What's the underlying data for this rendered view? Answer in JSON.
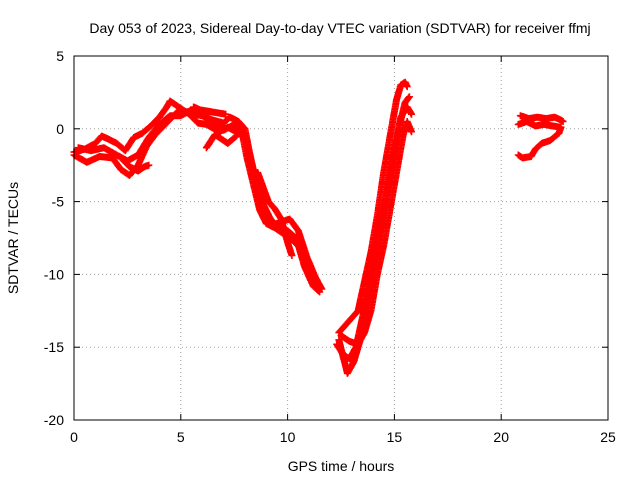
{
  "chart_data": {
    "type": "scatter",
    "title": "Day 053 of 2023, Sidereal Day-to-day VTEC variation (SDTVAR) for receiver ffmj",
    "xlabel": "GPS time / hours",
    "ylabel": "SDTVAR / TECUs",
    "xlim": [
      0,
      25
    ],
    "ylim": [
      -20,
      5
    ],
    "xticks": [
      "0",
      "5",
      "10",
      "15",
      "20",
      "25"
    ],
    "yticks": [
      "5",
      "0",
      "-5",
      "-10",
      "-15",
      "-20"
    ],
    "grid": true,
    "marker": "+",
    "color": "#ff0000",
    "series": [
      {
        "name": "",
        "tracks": [
          [
            [
              0.0,
              -1.6
            ],
            [
              0.5,
              -1.4
            ],
            [
              1.0,
              -1.0
            ],
            [
              1.3,
              -0.5
            ],
            [
              1.6,
              -0.7
            ],
            [
              2.0,
              -1.0
            ],
            [
              2.4,
              -1.5
            ],
            [
              2.8,
              -0.6
            ],
            [
              3.2,
              -0.3
            ],
            [
              3.6,
              0.2
            ],
            [
              4.0,
              0.8
            ],
            [
              4.3,
              1.4
            ],
            [
              4.5,
              1.9
            ],
            [
              4.8,
              1.6
            ],
            [
              5.2,
              1.2
            ],
            [
              5.6,
              1.0
            ],
            [
              6.0,
              0.9
            ],
            [
              6.5,
              0.6
            ],
            [
              7.0,
              0.4
            ],
            [
              7.3,
              0.8
            ],
            [
              7.7,
              0.5
            ],
            [
              8.0,
              0.0
            ],
            [
              8.2,
              -1.5
            ],
            [
              8.5,
              -3.5
            ],
            [
              8.8,
              -5.0
            ],
            [
              9.2,
              -6.2
            ],
            [
              9.6,
              -6.8
            ],
            [
              10.0,
              -7.0
            ],
            [
              10.4,
              -7.5
            ],
            [
              10.8,
              -9.5
            ],
            [
              11.2,
              -10.8
            ],
            [
              11.5,
              -11.2
            ]
          ],
          [
            [
              0.0,
              -1.8
            ],
            [
              0.6,
              -2.3
            ],
            [
              1.2,
              -1.9
            ],
            [
              1.8,
              -2.0
            ],
            [
              2.2,
              -2.8
            ],
            [
              2.6,
              -3.2
            ],
            [
              3.0,
              -2.5
            ],
            [
              3.4,
              -1.2
            ],
            [
              3.8,
              -0.4
            ],
            [
              4.2,
              0.2
            ],
            [
              4.6,
              0.8
            ],
            [
              5.0,
              1.4
            ],
            [
              5.4,
              1.0
            ],
            [
              5.8,
              0.4
            ],
            [
              6.2,
              0.3
            ],
            [
              6.8,
              -0.2
            ],
            [
              7.2,
              0.1
            ],
            [
              7.6,
              -0.2
            ],
            [
              7.9,
              -0.5
            ],
            [
              8.1,
              -2.0
            ],
            [
              8.4,
              -3.8
            ],
            [
              8.7,
              -5.6
            ],
            [
              9.0,
              -6.5
            ],
            [
              9.4,
              -6.8
            ],
            [
              9.8,
              -7.2
            ],
            [
              10.2,
              -7.6
            ],
            [
              10.6,
              -8.2
            ],
            [
              11.0,
              -9.8
            ],
            [
              11.4,
              -11.0
            ]
          ],
          [
            [
              0.2,
              -1.3
            ],
            [
              0.8,
              -1.5
            ],
            [
              1.4,
              -1.3
            ],
            [
              2.0,
              -1.8
            ],
            [
              2.5,
              -2.2
            ],
            [
              3.0,
              -1.8
            ],
            [
              3.5,
              -0.6
            ],
            [
              4.0,
              0.3
            ],
            [
              4.5,
              0.9
            ],
            [
              5.0,
              0.9
            ],
            [
              5.5,
              1.3
            ],
            [
              6.0,
              1.0
            ],
            [
              6.5,
              0.2
            ],
            [
              7.0,
              -0.1
            ],
            [
              7.5,
              0.3
            ],
            [
              8.0,
              -0.4
            ],
            [
              8.3,
              -2.5
            ],
            [
              8.6,
              -4.5
            ],
            [
              8.9,
              -6.0
            ],
            [
              9.3,
              -6.6
            ],
            [
              9.7,
              -6.4
            ],
            [
              10.1,
              -6.2
            ],
            [
              10.5,
              -7.0
            ],
            [
              10.9,
              -8.8
            ],
            [
              11.3,
              -10.2
            ],
            [
              11.6,
              -11.0
            ]
          ],
          [
            [
              2.2,
              -2.0
            ],
            [
              2.6,
              -2.6
            ],
            [
              3.0,
              -2.9
            ],
            [
              3.3,
              -2.6
            ],
            [
              3.5,
              -2.5
            ]
          ],
          [
            [
              5.6,
              1.5
            ],
            [
              5.9,
              1.3
            ],
            [
              6.3,
              1.2
            ],
            [
              6.7,
              1.1
            ],
            [
              7.1,
              1.0
            ]
          ],
          [
            [
              6.2,
              -1.3
            ],
            [
              6.6,
              -0.4
            ],
            [
              7.2,
              -1.0
            ],
            [
              7.6,
              -0.5
            ]
          ],
          [
            [
              8.6,
              -3.0
            ],
            [
              8.9,
              -4.2
            ],
            [
              9.1,
              -5.0
            ],
            [
              9.4,
              -5.5
            ],
            [
              9.7,
              -6.2
            ],
            [
              10.0,
              -7.8
            ],
            [
              10.2,
              -8.7
            ]
          ],
          [
            [
              12.4,
              -14.0
            ],
            [
              12.7,
              -13.5
            ],
            [
              13.0,
              -13.0
            ],
            [
              13.3,
              -12.5
            ],
            [
              13.6,
              -10.5
            ],
            [
              13.9,
              -8.5
            ],
            [
              14.2,
              -6.0
            ],
            [
              14.5,
              -3.0
            ],
            [
              14.8,
              -0.5
            ],
            [
              15.1,
              2.0
            ],
            [
              15.3,
              3.0
            ],
            [
              15.5,
              3.2
            ],
            [
              15.6,
              2.9
            ]
          ],
          [
            [
              12.4,
              -14.5
            ],
            [
              12.8,
              -16.8
            ],
            [
              13.1,
              -16.0
            ],
            [
              13.4,
              -14.5
            ],
            [
              13.7,
              -12.0
            ],
            [
              14.0,
              -9.8
            ],
            [
              14.3,
              -7.5
            ],
            [
              14.6,
              -5.0
            ],
            [
              14.9,
              -2.5
            ],
            [
              15.2,
              0.0
            ],
            [
              15.5,
              1.8
            ],
            [
              15.7,
              2.2
            ]
          ],
          [
            [
              12.3,
              -14.8
            ],
            [
              12.6,
              -15.5
            ],
            [
              12.9,
              -15.8
            ],
            [
              13.2,
              -15.0
            ],
            [
              13.5,
              -13.0
            ],
            [
              13.8,
              -11.0
            ],
            [
              14.1,
              -8.8
            ],
            [
              14.4,
              -6.2
            ],
            [
              14.7,
              -4.0
            ],
            [
              15.0,
              -1.5
            ],
            [
              15.3,
              0.8
            ],
            [
              15.6,
              1.5
            ],
            [
              15.8,
              1.0
            ]
          ],
          [
            [
              12.5,
              -14.2
            ],
            [
              12.9,
              -14.6
            ],
            [
              13.3,
              -14.8
            ],
            [
              13.6,
              -14.0
            ],
            [
              13.9,
              -12.5
            ],
            [
              14.2,
              -10.0
            ],
            [
              14.5,
              -8.0
            ],
            [
              14.8,
              -5.5
            ],
            [
              15.1,
              -3.0
            ],
            [
              15.4,
              -0.5
            ],
            [
              15.6,
              0.5
            ],
            [
              15.8,
              -0.2
            ]
          ],
          [
            [
              20.9,
              0.9
            ],
            [
              21.3,
              0.7
            ],
            [
              21.7,
              0.8
            ],
            [
              22.1,
              0.7
            ],
            [
              22.5,
              0.8
            ],
            [
              22.8,
              0.6
            ],
            [
              22.9,
              0.5
            ]
          ],
          [
            [
              20.8,
              0.3
            ],
            [
              21.2,
              0.5
            ],
            [
              21.6,
              0.2
            ],
            [
              22.0,
              0.3
            ],
            [
              22.4,
              0.2
            ],
            [
              22.8,
              0.1
            ],
            [
              22.7,
              -0.3
            ],
            [
              22.3,
              -0.8
            ],
            [
              21.9,
              -1.0
            ],
            [
              21.6,
              -1.4
            ],
            [
              21.4,
              -1.9
            ],
            [
              21.0,
              -2.0
            ],
            [
              20.8,
              -1.8
            ]
          ]
        ]
      }
    ]
  }
}
